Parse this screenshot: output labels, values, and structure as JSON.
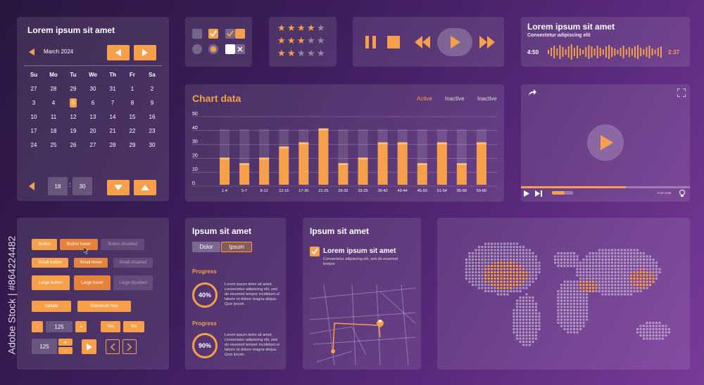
{
  "calendar": {
    "title": "Lorem ipsum sit amet",
    "month": "March 2024",
    "weekdays": [
      "Su",
      "Mo",
      "Tu",
      "We",
      "Th",
      "Fr",
      "Sa"
    ],
    "weeks": [
      [
        "27",
        "28",
        "29",
        "30",
        "31",
        "1",
        "2"
      ],
      [
        "3",
        "4",
        "5",
        "6",
        "7",
        "8",
        "9"
      ],
      [
        "10",
        "11",
        "12",
        "13",
        "14",
        "15",
        "16"
      ],
      [
        "17",
        "18",
        "19",
        "20",
        "21",
        "22",
        "23"
      ],
      [
        "24",
        "25",
        "26",
        "27",
        "28",
        "29",
        "30"
      ]
    ],
    "selected_day": "5",
    "hour": "18",
    "minute": "30",
    "separator": ":"
  },
  "audio": {
    "title": "Lorem ipsum sit amet",
    "subtitle": "Consectetur adipiscing elit",
    "elapsed": "4:50",
    "total": "2:37"
  },
  "chart_data": {
    "type": "bar",
    "title": "Chart data",
    "categories": [
      "1-4",
      "5-7",
      "8-12",
      "12-16",
      "17-20",
      "21-25",
      "26-32",
      "33-35",
      "36-42",
      "43-44",
      "45-50",
      "51-54",
      "55-58",
      "59-60"
    ],
    "values": [
      18,
      14,
      18,
      26,
      29,
      39,
      14,
      18,
      29,
      29,
      14,
      29,
      14,
      29
    ],
    "yticks": [
      "0",
      "10",
      "20",
      "30",
      "40",
      "50"
    ],
    "ylim": [
      0,
      50
    ],
    "tabs": [
      "Active",
      "Inactive",
      "Inactive"
    ],
    "bar_color": "#f7a04b"
  },
  "video": {
    "time": "0:15 / 0:48",
    "progress": 0.62
  },
  "buttons": {
    "button": "Button",
    "button_hover": "Button hover",
    "button_disabled": "Button disabled",
    "small_button": "Small button",
    "small_hover": "Small hover",
    "small_disabled": "Small disabled",
    "large_button": "Large button",
    "large_hover": "Large hover",
    "large_disabled": "Large disabled",
    "update": "Update",
    "download_now": "Download now",
    "minus": "-",
    "plus": "+",
    "stepper_value": "125",
    "yes": "Yes",
    "no": "No",
    "stepper2_value": "125"
  },
  "progress_card": {
    "title": "Ipsum sit amet",
    "tag1": "Dolor",
    "tag2": "Ipsum",
    "section1": "Progress",
    "value1": "40%",
    "text1": "Lorem ipsum dolor sit amet, consectetur adipiscing elit, sed do eiusmod tempor incididunt ut labore et dolore magna aliqua. Quis ipsum.",
    "section2": "Progress",
    "value2": "90%",
    "text2": "Lorem ipsum dolor sit amet, consectetur adipiscing elit, sed do eiusmod tempor incididunt ut labore et dolore magna aliqua. Quis ipsum."
  },
  "map_card": {
    "title": "Ipsum sit amet",
    "item_title": "Lorem ipsum sit amet",
    "item_text": "Consectetur adipiscing elit, sed do eiusmod tempor"
  },
  "watermark": "Adobe Stock | #864224482"
}
